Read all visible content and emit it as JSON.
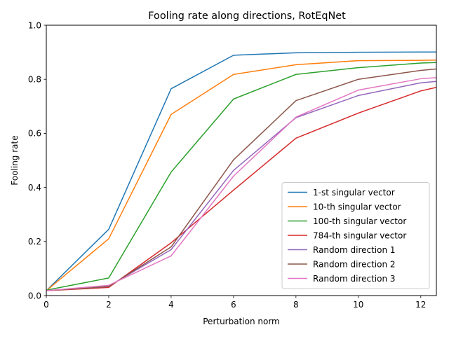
{
  "chart_data": {
    "type": "line",
    "title": "Fooling rate along directions, RotEqNet",
    "xlabel": "Perturbation norm",
    "ylabel": "Fooling rate",
    "xlim": [
      0,
      12.5
    ],
    "ylim": [
      0,
      1.0
    ],
    "xticks": [
      0,
      2,
      4,
      6,
      8,
      10,
      12
    ],
    "yticks": [
      0.0,
      0.2,
      0.4,
      0.6,
      0.8,
      1.0
    ],
    "xtick_labels": [
      "0",
      "2",
      "4",
      "6",
      "8",
      "10",
      "12"
    ],
    "ytick_labels": [
      "0.0",
      "0.2",
      "0.4",
      "0.6",
      "0.8",
      "1.0"
    ],
    "grid": false,
    "legend_position": "bottom-right",
    "x": [
      0,
      2,
      4,
      6,
      8,
      10,
      12,
      12.5
    ],
    "series": [
      {
        "name": "1-st singular vector",
        "color": "#1f77b4",
        "values": [
          0.018,
          0.245,
          0.765,
          0.889,
          0.898,
          0.9,
          0.901,
          0.901
        ]
      },
      {
        "name": "10-th singular vector",
        "color": "#ff7f0e",
        "values": [
          0.018,
          0.21,
          0.67,
          0.818,
          0.854,
          0.869,
          0.87,
          0.871
        ]
      },
      {
        "name": "100-th singular vector",
        "color": "#2ca02c",
        "values": [
          0.02,
          0.065,
          0.457,
          0.727,
          0.818,
          0.843,
          0.86,
          0.862
        ]
      },
      {
        "name": "784-th singular vector",
        "color": "#d62728",
        "values": [
          0.018,
          0.03,
          0.195,
          0.39,
          0.582,
          0.675,
          0.757,
          0.77
        ]
      },
      {
        "name": "Random direction 1",
        "color": "#9467bd",
        "values": [
          0.018,
          0.035,
          0.17,
          0.463,
          0.658,
          0.74,
          0.787,
          0.792
        ]
      },
      {
        "name": "Random direction 2",
        "color": "#8c564b",
        "values": [
          0.018,
          0.033,
          0.18,
          0.502,
          0.721,
          0.8,
          0.833,
          0.838
        ]
      },
      {
        "name": "Random direction 3",
        "color": "#e377c2",
        "values": [
          0.018,
          0.038,
          0.147,
          0.442,
          0.66,
          0.76,
          0.802,
          0.806
        ]
      }
    ]
  }
}
